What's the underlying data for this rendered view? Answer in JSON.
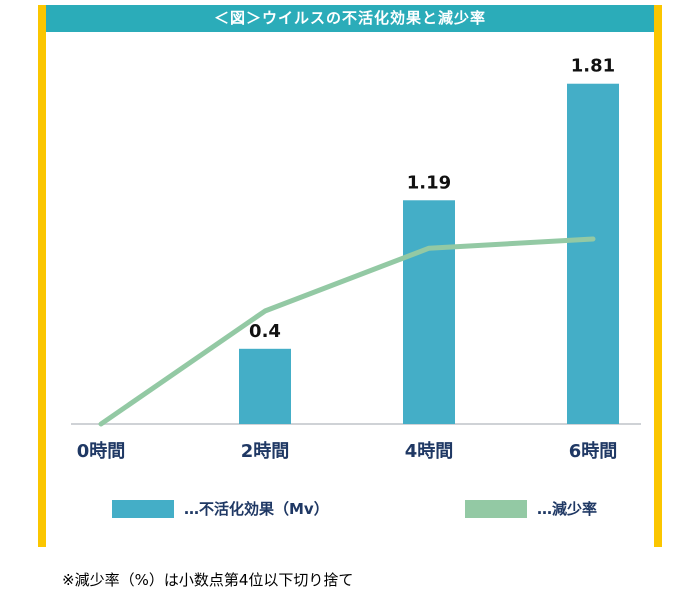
{
  "page": {
    "title": "＜図＞ウイルスの不活化効果と減少率",
    "note": "※減少率（%）は小数点第4位以下切り捨て"
  },
  "colors": {
    "accent_yellow": "#FBC600",
    "header_teal": "#2BACB9",
    "bar_teal": "#44AEC7",
    "line_green": "#93C9A4",
    "label_navy": "#1F3864",
    "value_label_black": "#111111",
    "axis_gray": "#CFD2D6"
  },
  "legend": [
    {
      "swatch": "bar",
      "label": "…不活化効果（Mv）"
    },
    {
      "swatch": "line",
      "label": "…減少率"
    }
  ],
  "chart_data": {
    "type": "bar+line",
    "title": "＜図＞ウイルスの不活化効果と減少率",
    "categories": [
      "0時間",
      "2時間",
      "4時間",
      "6時間"
    ],
    "series": [
      {
        "name": "不活化効果（Mv）",
        "type": "bar",
        "values": [
          0,
          0.4,
          1.19,
          1.81
        ],
        "value_labels": [
          "",
          "0.4",
          "1.19",
          "1.81"
        ]
      },
      {
        "name": "減少率",
        "type": "line",
        "values_estimated_percent": [
          0,
          60.1,
          93.5,
          98.4
        ],
        "note": "line values not labeled in figure; estimated from pixel positions"
      }
    ],
    "xlabel": "",
    "ylabel": "",
    "ylim": [
      0,
      2.0
    ],
    "grid": false,
    "value_labels_shown": true,
    "legend_position": "bottom"
  }
}
